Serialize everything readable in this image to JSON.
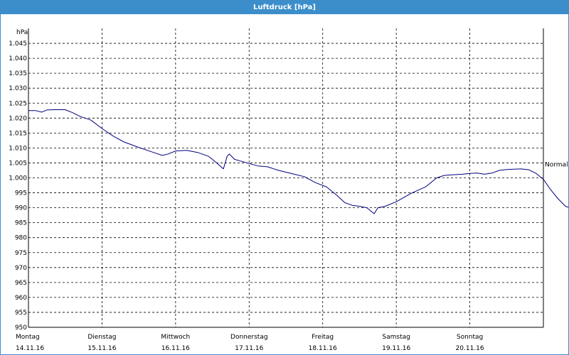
{
  "window": {
    "title": "Luftdruck [hPa]"
  },
  "chart_data": {
    "type": "line",
    "title": "Luftdruck [hPa]",
    "ylabel": "hPa",
    "xlabel": "",
    "ylim": [
      950,
      1050
    ],
    "y_ticks": [
      "950",
      "955",
      "960",
      "965",
      "970",
      "975",
      "980",
      "985",
      "990",
      "995",
      "1.000",
      "1.005",
      "1.010",
      "1.015",
      "1.020",
      "1.025",
      "1.030",
      "1.035",
      "1.040",
      "1.045"
    ],
    "x_ticks": [
      {
        "day": "Montag",
        "date": "14.11.16"
      },
      {
        "day": "Dienstag",
        "date": "15.11.16"
      },
      {
        "day": "Mittwoch",
        "date": "16.11.16"
      },
      {
        "day": "Donnerstag",
        "date": "17.11.16"
      },
      {
        "day": "Freitag",
        "date": "18.11.16"
      },
      {
        "day": "Samstag",
        "date": "19.11.16"
      },
      {
        "day": "Sonntag",
        "date": "20.11.16"
      }
    ],
    "grid": true,
    "normal_label": "Normal",
    "normal_value": 1004.5,
    "series": [
      {
        "color": "#00007f",
        "x_unit": "day-offset-from-14.11.16",
        "points": [
          [
            0.0,
            1022.5
          ],
          [
            0.1,
            1022.5
          ],
          [
            0.18,
            1022.0
          ],
          [
            0.25,
            1022.7
          ],
          [
            0.35,
            1022.8
          ],
          [
            0.5,
            1022.8
          ],
          [
            0.6,
            1021.8
          ],
          [
            0.7,
            1020.6
          ],
          [
            0.85,
            1019.3
          ],
          [
            1.0,
            1016.5
          ],
          [
            1.15,
            1014.0
          ],
          [
            1.3,
            1012.0
          ],
          [
            1.5,
            1010.2
          ],
          [
            1.7,
            1008.5
          ],
          [
            1.82,
            1007.5
          ],
          [
            1.9,
            1008.0
          ],
          [
            2.0,
            1009.0
          ],
          [
            2.15,
            1009.2
          ],
          [
            2.3,
            1008.5
          ],
          [
            2.45,
            1007.2
          ],
          [
            2.55,
            1005.2
          ],
          [
            2.65,
            1003.0
          ],
          [
            2.7,
            1007.2
          ],
          [
            2.73,
            1008.0
          ],
          [
            2.8,
            1006.2
          ],
          [
            2.9,
            1005.5
          ],
          [
            3.0,
            1004.8
          ],
          [
            3.12,
            1004.0
          ],
          [
            3.25,
            1003.7
          ],
          [
            3.4,
            1002.5
          ],
          [
            3.6,
            1001.3
          ],
          [
            3.75,
            1000.4
          ],
          [
            3.9,
            998.4
          ],
          [
            4.05,
            997.0
          ],
          [
            4.2,
            994.0
          ],
          [
            4.3,
            991.7
          ],
          [
            4.4,
            990.8
          ],
          [
            4.5,
            990.5
          ],
          [
            4.6,
            990.0
          ],
          [
            4.65,
            989.0
          ],
          [
            4.7,
            988.0
          ],
          [
            4.75,
            990.0
          ],
          [
            4.85,
            990.5
          ],
          [
            5.0,
            992.0
          ],
          [
            5.2,
            994.8
          ],
          [
            5.4,
            997.0
          ],
          [
            5.55,
            1000.0
          ],
          [
            5.65,
            1000.8
          ],
          [
            5.75,
            1001.0
          ],
          [
            5.9,
            1001.2
          ],
          [
            6.0,
            1001.5
          ],
          [
            6.1,
            1001.6
          ],
          [
            6.2,
            1001.2
          ],
          [
            6.3,
            1001.6
          ],
          [
            6.4,
            1002.5
          ],
          [
            6.5,
            1002.8
          ],
          [
            6.6,
            1002.9
          ],
          [
            6.7,
            1003.0
          ],
          [
            6.8,
            1002.7
          ],
          [
            6.9,
            1001.5
          ],
          [
            7.0,
            999.5
          ],
          [
            7.1,
            996.0
          ],
          [
            7.2,
            993.0
          ],
          [
            7.3,
            990.5
          ],
          [
            7.4,
            989.6
          ],
          [
            7.5,
            991.0
          ],
          [
            7.6,
            994.5
          ],
          [
            7.7,
            997.3
          ]
        ]
      }
    ]
  }
}
